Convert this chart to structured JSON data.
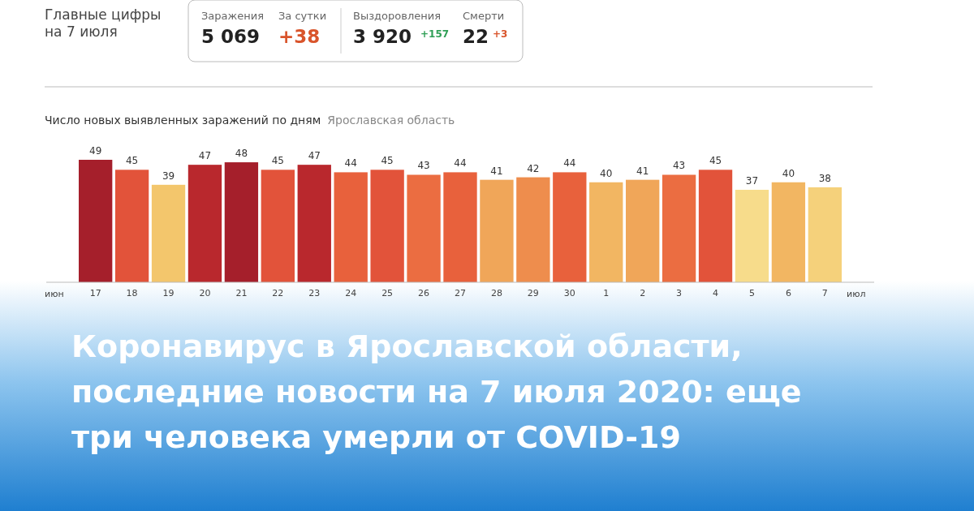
{
  "chart_data": {
    "type": "bar",
    "title": "Число новых выявленных заражений по дням",
    "subtitle": "Ярославская область",
    "categories": [
      "17",
      "18",
      "19",
      "20",
      "21",
      "22",
      "23",
      "24",
      "25",
      "26",
      "27",
      "28",
      "29",
      "30",
      "1",
      "2",
      "3",
      "4",
      "5",
      "6",
      "7"
    ],
    "values": [
      49,
      45,
      39,
      47,
      48,
      45,
      47,
      44,
      45,
      43,
      44,
      41,
      42,
      44,
      40,
      41,
      43,
      45,
      37,
      40,
      38
    ],
    "colors": [
      "#a51f2b",
      "#e2533a",
      "#f3c66c",
      "#b9282d",
      "#a51f2b",
      "#e2533a",
      "#b9282d",
      "#e8613c",
      "#e2533a",
      "#eb6d41",
      "#e8613c",
      "#f0a659",
      "#ee8d4d",
      "#e8613c",
      "#f2b662",
      "#f0a659",
      "#eb6d41",
      "#e2533a",
      "#f7dc8b",
      "#f2b662",
      "#f5d17b"
    ],
    "data_labels": true,
    "annotations": [
      "Главные цифры",
      "на 7 июля",
      "Заражения",
      "5 069",
      "За сутки",
      "+38",
      "Выздоровления",
      "3 920",
      "+157",
      "Смерти",
      "22",
      "+3",
      "июн",
      "июл",
      "Коронавирус в Ярославской области,",
      "последние новости на 7 июля 2020: еще",
      "три человека умерли от COVID-19"
    ]
  }
}
